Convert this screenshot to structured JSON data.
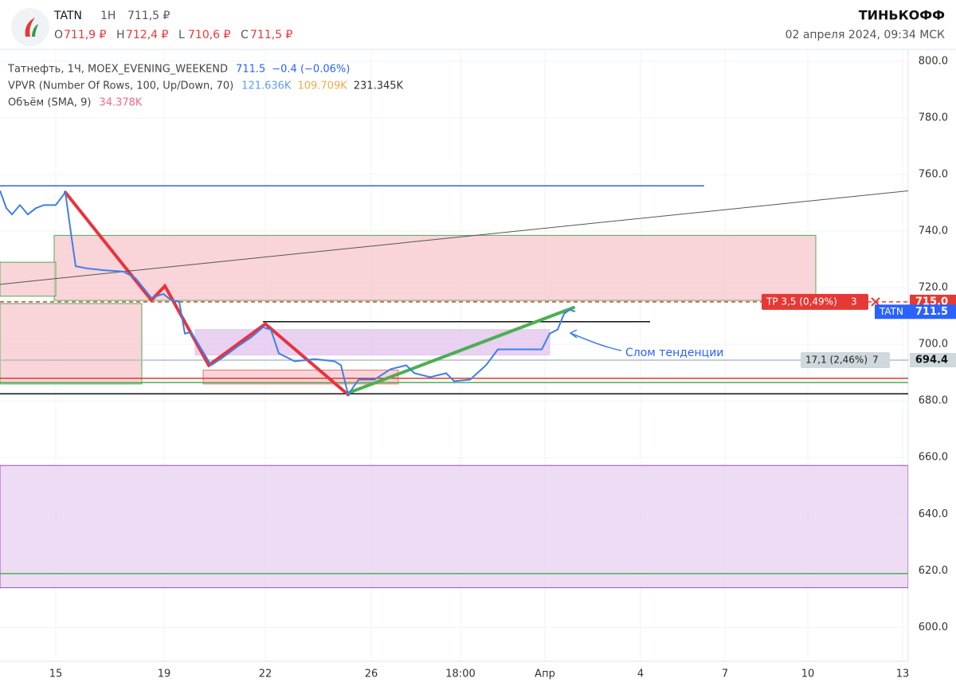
{
  "header": {
    "symbol": "TATN",
    "interval": "1H",
    "price": "711,5 ₽",
    "ohlc": [
      {
        "key": "O",
        "value": "711,9 ₽"
      },
      {
        "key": "H",
        "value": "712,4 ₽"
      },
      {
        "key": "L",
        "value": "710,6 ₽"
      },
      {
        "key": "C",
        "value": "711,5 ₽"
      }
    ],
    "brand": "ТИНЬКОФФ",
    "datetime": "02 апреля 2024, 09:34 МСК"
  },
  "chart_data": {
    "type": "line",
    "legend": [
      {
        "name": "Татнефть, 1Ч, MOEX_EVENING_WEEKEND",
        "values": [
          {
            "text": "711.5",
            "color": "#2962ff"
          },
          {
            "text": "−0.4 (−0.06%)",
            "color": "#2962ff"
          }
        ]
      },
      {
        "name": "VPVR (Number Of Rows, 100, Up/Down, 70)",
        "values": [
          {
            "text": "121.636K",
            "color": "#5b9cf6"
          },
          {
            "text": "109.709K",
            "color": "#f5a94a"
          },
          {
            "text": "231.345K",
            "color": "#333333"
          }
        ]
      },
      {
        "name": "Объём (SMA, 9)",
        "values": [
          {
            "text": "34.378K",
            "color": "#f06c83"
          }
        ]
      }
    ],
    "series": [
      {
        "name": "TATN",
        "color": "#3d7fe8",
        "x": [
          0,
          2,
          3.75,
          6.25,
          8.75,
          11.25,
          13.75,
          17.5,
          20.5,
          22.5,
          23.75,
          27.5,
          32.5,
          38.75,
          42.5,
          47.5,
          51.25,
          53.75,
          56.25,
          58,
          60,
          62.5,
          66.25,
          70,
          75,
          78.75,
          82.5,
          85,
          87.5,
          92.5,
          98.75,
          105,
          107,
          109.25,
          112.5,
          117.5,
          122.5,
          127.5,
          130,
          135,
          140,
          142.5,
          147.5,
          152.5,
          156.25,
          162.5,
          170,
          172.5,
          175,
          177,
          178.75,
          180.5
        ],
        "values": [
          754.3,
          748.1,
          745.9,
          749.2,
          745.9,
          748.1,
          749.2,
          749.2,
          753.7,
          737.4,
          727.6,
          726.8,
          726.2,
          725.7,
          723.4,
          716.4,
          717.8,
          715.6,
          715,
          703.8,
          704.3,
          699.6,
          692.6,
          695.4,
          699.6,
          702.4,
          706,
          705.2,
          696.8,
          694,
          694.8,
          694,
          692.6,
          682.2,
          687.5,
          687.5,
          691.2,
          692.6,
          689.8,
          688.4,
          689.8,
          687,
          687.5,
          692.6,
          698.2,
          698.2,
          698.2,
          703.8,
          705.2,
          710.8,
          712.2,
          711.6
        ]
      }
    ],
    "xlim": [
      0,
      285
    ],
    "xticks": [
      {
        "value": 17.5,
        "label": "15"
      },
      {
        "value": 51.5,
        "label": "19"
      },
      {
        "value": 83.25,
        "label": "22"
      },
      {
        "value": 116.5,
        "label": "26"
      },
      {
        "value": 144.5,
        "label": "18:00"
      },
      {
        "value": 171,
        "label": "Апр"
      },
      {
        "value": 201,
        "label": "4"
      },
      {
        "value": 227.5,
        "label": "7"
      },
      {
        "value": 253.5,
        "label": "10"
      },
      {
        "value": 283.25,
        "label": "13"
      }
    ],
    "ylim": [
      588,
      804.2
    ],
    "yticks": [
      {
        "value": 600,
        "label": "600.0"
      },
      {
        "value": 620,
        "label": "620.0"
      },
      {
        "value": 640,
        "label": "640.0"
      },
      {
        "value": 660,
        "label": "660.0"
      },
      {
        "value": 680,
        "label": "680.0"
      },
      {
        "value": 700,
        "label": "700.0"
      },
      {
        "value": 720,
        "label": "720.0"
      },
      {
        "value": 740,
        "label": "740.0"
      },
      {
        "value": 760,
        "label": "760.0"
      },
      {
        "value": 780,
        "label": "780.0"
      },
      {
        "value": 800,
        "label": "800.0"
      }
    ],
    "zones": [
      {
        "x": [
          17,
          256
        ],
        "y": [
          715.5,
          738.5
        ],
        "color": "#f7c9cf",
        "border": "#4caf50"
      },
      {
        "x": [
          0,
          17.5
        ],
        "y": [
          717,
          729
        ],
        "color": "#f7c9cf",
        "border": "#4caf50"
      },
      {
        "x": [
          0,
          44.5
        ],
        "y": [
          686,
          714.4
        ],
        "color": "#f7c9cf",
        "border": "#4caf50"
      },
      {
        "x": [
          61.25,
          172.5
        ],
        "y": [
          696.2,
          705.2
        ],
        "color": "#e3c6ef",
        "border": "#e3c6ef"
      },
      {
        "x": [
          63.75,
          125
        ],
        "y": [
          686,
          690.9
        ],
        "color": "#f7c9cf",
        "border": "#e57373"
      },
      {
        "x": [
          0,
          285
        ],
        "y": [
          614,
          657.2
        ],
        "color": "#ead3f2",
        "border": "#9c4fb0"
      }
    ],
    "levels": [
      {
        "value": 756,
        "x": [
          0,
          221
        ],
        "color": "#2962ff",
        "dash": false
      },
      {
        "value": 715,
        "x": [
          0,
          285
        ],
        "color": "#e53935",
        "dash": true
      },
      {
        "value": 708,
        "x": [
          82.5,
          204
        ],
        "color": "#111111",
        "dash": false
      },
      {
        "value": 694.4,
        "x": [
          0,
          285
        ],
        "color": "#b0bec5",
        "dash": false
      },
      {
        "value": 688,
        "x": [
          0,
          285
        ],
        "color": "#e53935",
        "dash": false
      },
      {
        "value": 686.5,
        "x": [
          0,
          285
        ],
        "color": "#4caf50",
        "dash": false
      },
      {
        "value": 682.5,
        "x": [
          0,
          285
        ],
        "color": "#111111",
        "dash": false
      },
      {
        "value": 619,
        "x": [
          0,
          285
        ],
        "color": "#4caf50",
        "dash": false
      }
    ],
    "trendlines": [
      {
        "color": "#e8333c",
        "width": 4,
        "x": [
          20.5,
          47.5,
          51.75,
          65.5,
          83.25,
          109.25
        ],
        "y": [
          753.7,
          715.6,
          720.6,
          692.6,
          707.2,
          682.2
        ]
      },
      {
        "color": "#4caf50",
        "width": 4,
        "x": [
          109.25,
          180
        ],
        "y": [
          682.8,
          713
        ]
      },
      {
        "color": "#555555",
        "width": 1,
        "x": [
          0,
          292.5
        ],
        "y": [
          721.2,
          755.1
        ]
      }
    ],
    "price_labels": [
      {
        "value": 715,
        "label": "715.0",
        "color": "#e53935"
      },
      {
        "value": 711.5,
        "label": "711.5",
        "name": "TATN",
        "color": "#2962ff"
      },
      {
        "value": 694.4,
        "label": "694.4",
        "color": "#cfd8dc"
      }
    ],
    "position_tags": [
      {
        "value": 715,
        "text": "TP 3,5 (0,49%)",
        "count": "3",
        "color": "#e53935"
      },
      {
        "value": 694.4,
        "text": "17,1 (2,46%)",
        "count": "7",
        "color": "#cfd8dc"
      }
    ],
    "annotation": "Слом тенденции"
  }
}
